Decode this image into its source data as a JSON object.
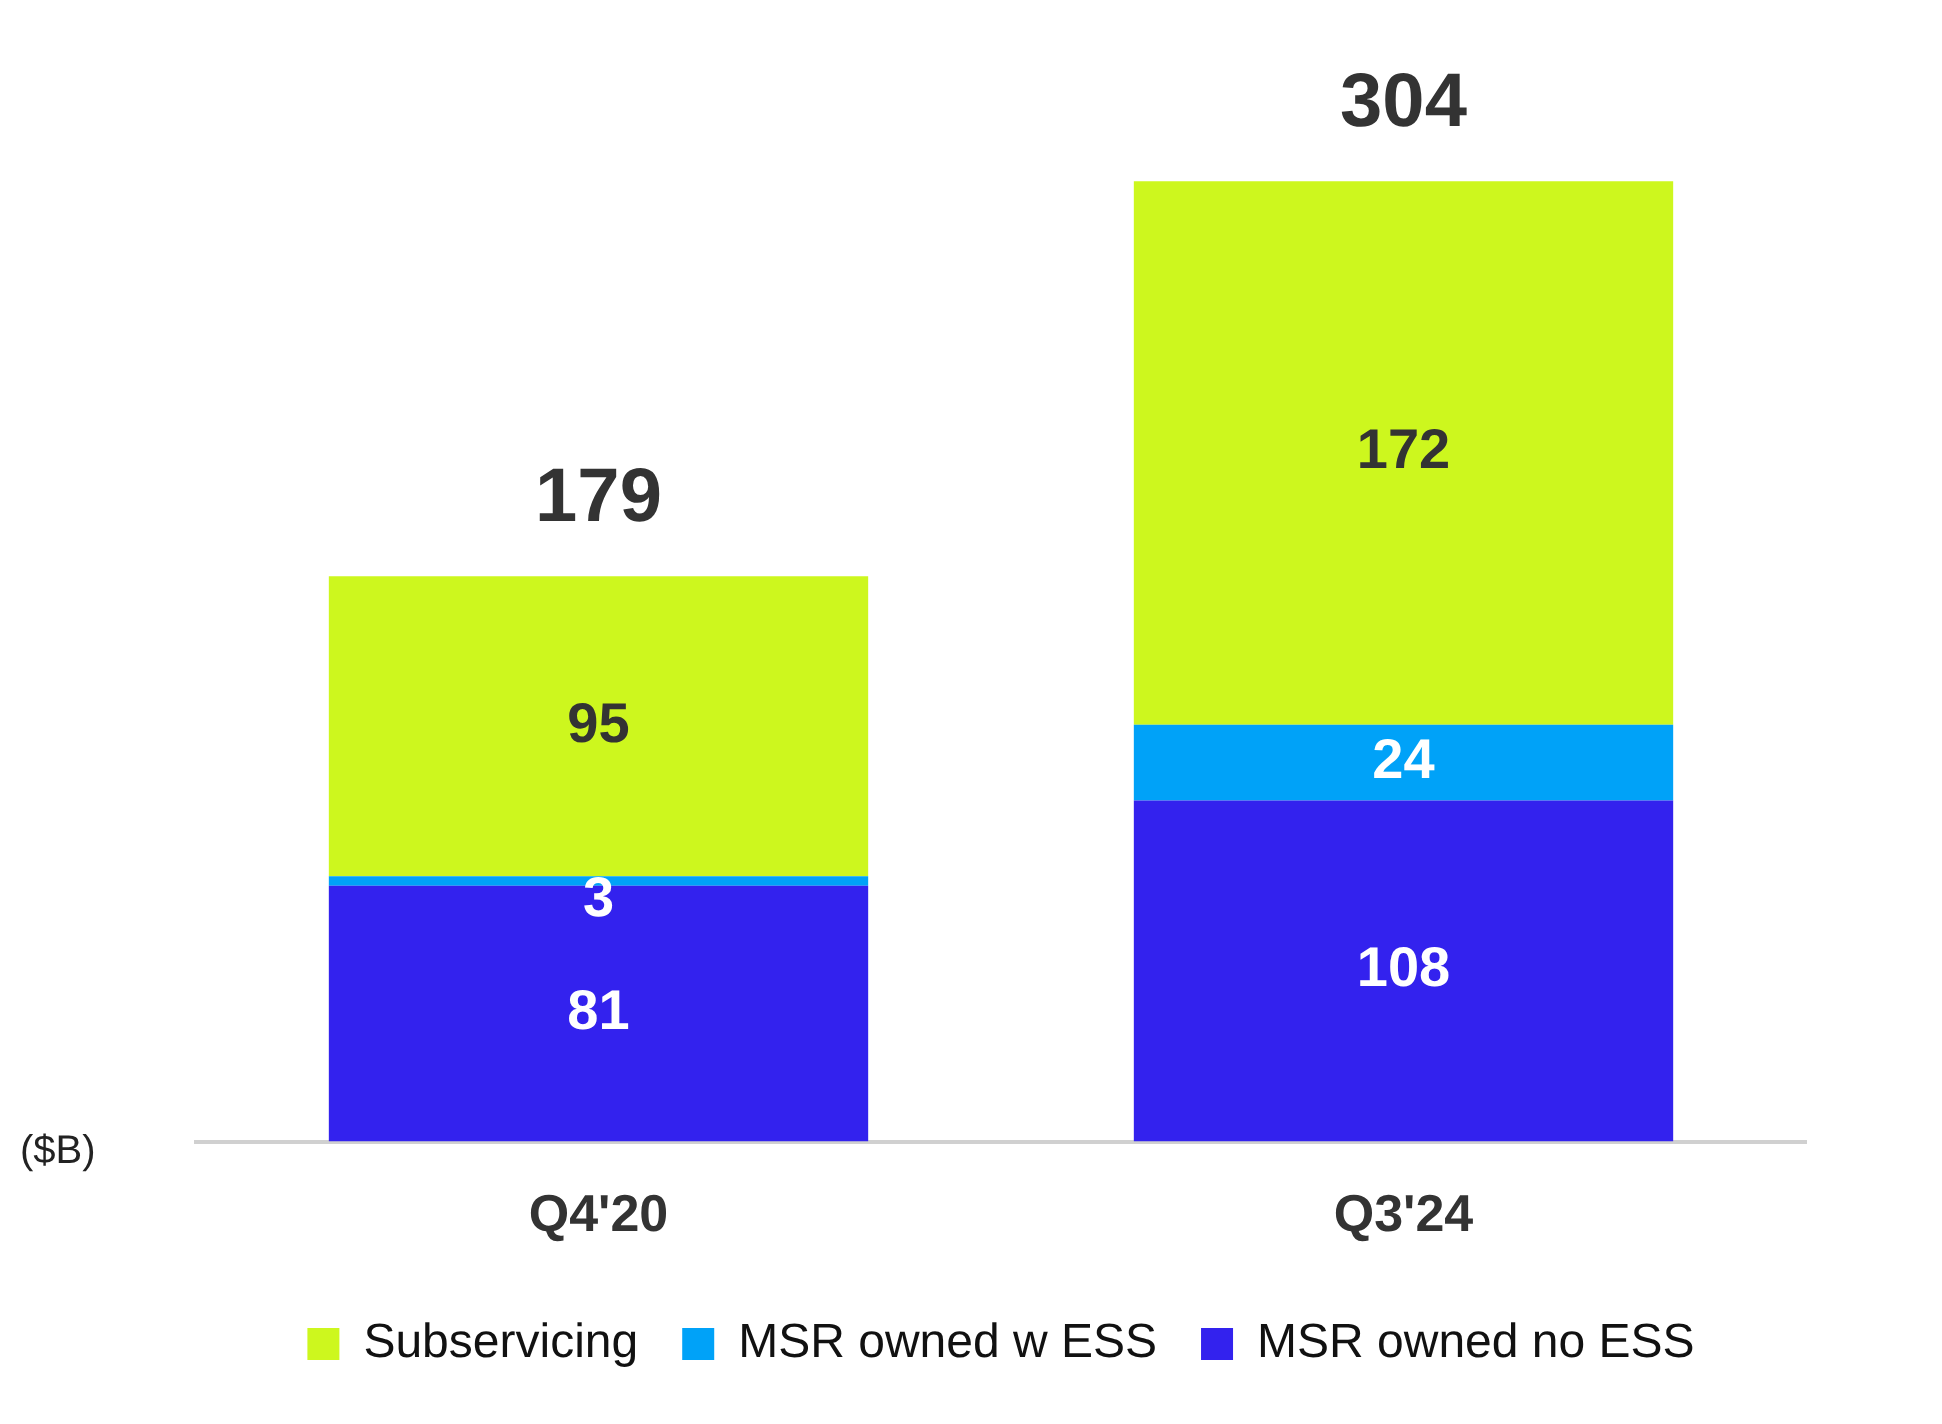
{
  "chart_data": {
    "type": "bar",
    "stacked": true,
    "ylabel": "($B)",
    "categories": [
      "Q4'20",
      "Q3'24"
    ],
    "series": [
      {
        "name": "MSR owned no ESS",
        "color": "#3322ee",
        "values": [
          81,
          108
        ]
      },
      {
        "name": "MSR owned w ESS",
        "color": "#00a2f8",
        "values": [
          3,
          24
        ]
      },
      {
        "name": "Subservicing",
        "color": "#cdf71e",
        "values": [
          95,
          172
        ]
      }
    ],
    "data_labels": true,
    "totals": [
      "179",
      "304"
    ],
    "legend": "bottom",
    "grid": false
  }
}
